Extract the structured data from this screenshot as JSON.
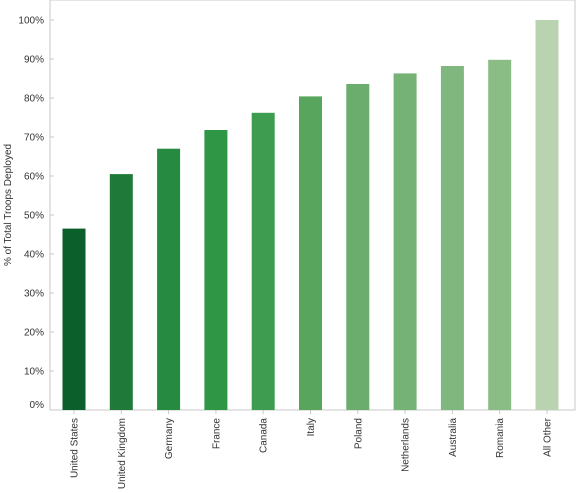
{
  "chart_data": {
    "type": "bar",
    "ylabel": "% of Total Troops Deployed",
    "xlabel": "",
    "ylim": [
      0,
      100
    ],
    "yticks": [
      0,
      10,
      20,
      30,
      40,
      50,
      60,
      70,
      80,
      90,
      100
    ],
    "ytick_labels": [
      "0%",
      "10%",
      "20%",
      "30%",
      "40%",
      "50%",
      "60%",
      "70%",
      "80%",
      "90%",
      "100%"
    ],
    "categories": [
      "United States",
      "United Kingdom",
      "Germany",
      "France",
      "Canada",
      "Italy",
      "Poland",
      "Netherlands",
      "Australia",
      "Romania",
      "All Other"
    ],
    "values": [
      46.5,
      60.5,
      67,
      71.8,
      76.2,
      80.4,
      83.6,
      86.3,
      88.2,
      89.8,
      100
    ],
    "colors": [
      "#0a5f2a",
      "#1f7a3a",
      "#268a40",
      "#2f9646",
      "#3e9c50",
      "#58a55e",
      "#6aad6c",
      "#74b276",
      "#7fb77e",
      "#8abc86",
      "#b9d3b1"
    ],
    "grid": false,
    "legend": "none"
  }
}
